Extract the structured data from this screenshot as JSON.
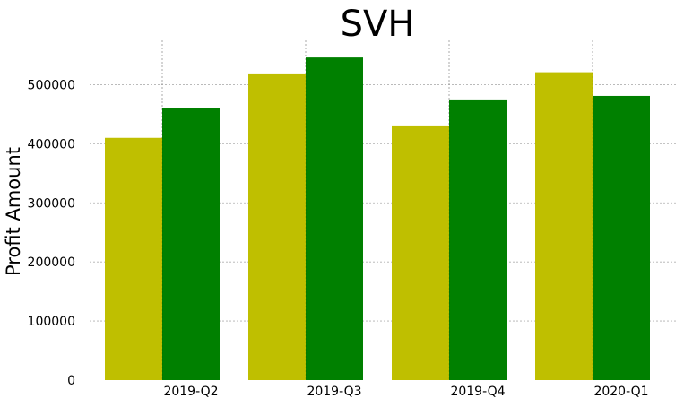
{
  "chart_data": {
    "type": "bar",
    "title": "SVH",
    "xlabel": "",
    "ylabel": "Profit Amount",
    "categories": [
      "2019-Q2",
      "2019-Q3",
      "2019-Q4",
      "2020-Q1"
    ],
    "series": [
      {
        "color": "#bfbf00",
        "values": [
          410000,
          519000,
          431000,
          521000
        ]
      },
      {
        "color": "#008000",
        "values": [
          461000,
          546000,
          475000,
          481000
        ]
      }
    ],
    "yticks": [
      0,
      100000,
      200000,
      300000,
      400000,
      500000
    ],
    "ylim": [
      0,
      575000
    ],
    "grid": true,
    "legend": "none"
  }
}
